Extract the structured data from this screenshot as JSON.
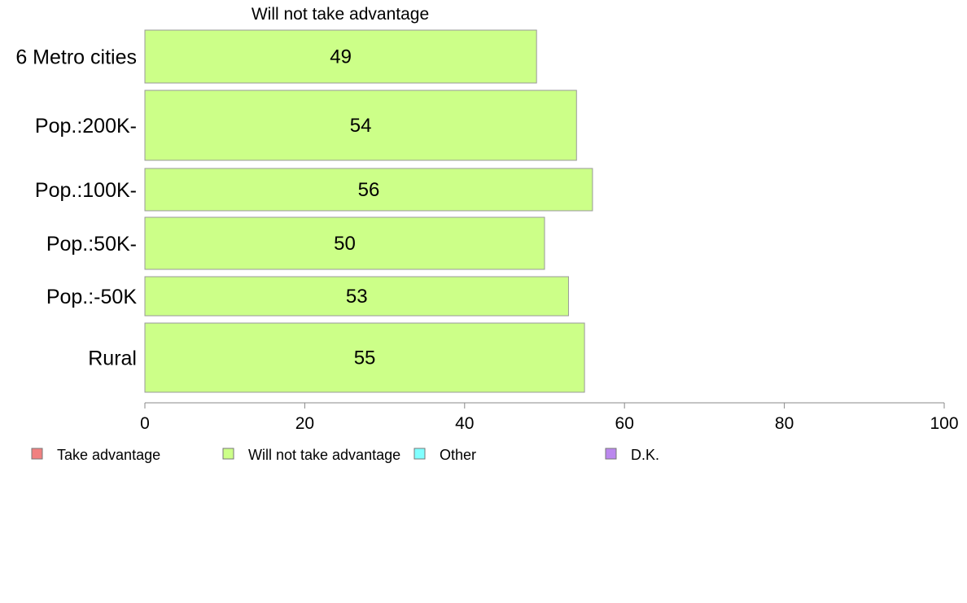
{
  "chart_data": {
    "type": "bar",
    "orientation": "horizontal",
    "title": "Will not take advantage",
    "categories": [
      "6 Metro cities",
      "Pop.:200K-",
      "Pop.:100K-",
      "Pop.:50K-",
      "Pop.:-50K",
      "Rural"
    ],
    "series": [
      {
        "name": "Will not take advantage",
        "color": "#ccff88",
        "values": [
          49,
          54,
          56,
          50,
          53,
          55
        ]
      }
    ],
    "xlim": [
      0,
      100
    ],
    "x_ticks": [
      0,
      20,
      40,
      60,
      80,
      100
    ],
    "grid": false,
    "legend_position": "bottom",
    "legend": [
      {
        "label": "Take advantage",
        "color": "#f08080"
      },
      {
        "label": "Will not take advantage",
        "color": "#ccff88"
      },
      {
        "label": "Other",
        "color": "#80ffff"
      },
      {
        "label": "D.K.",
        "color": "#bb88ee"
      }
    ]
  }
}
